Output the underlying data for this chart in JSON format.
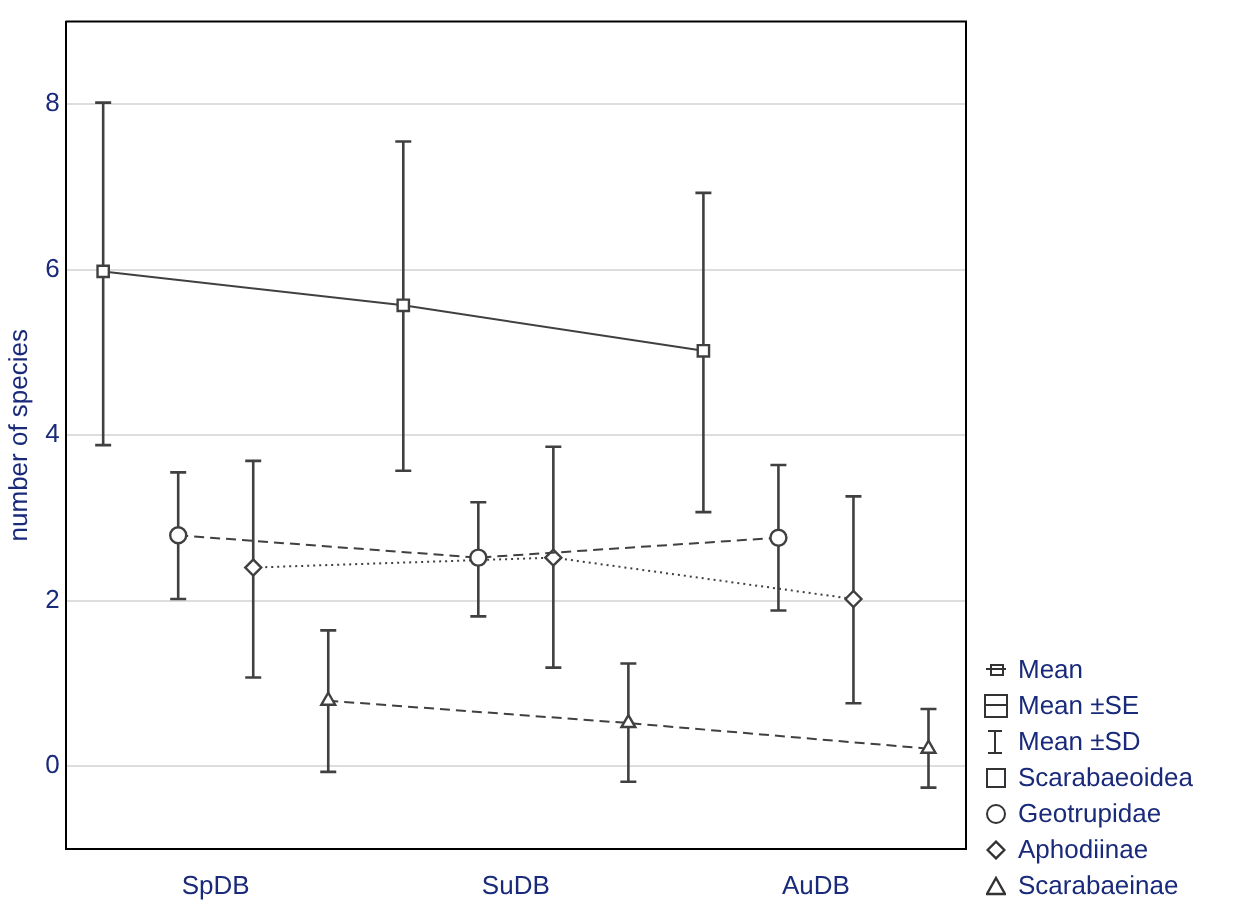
{
  "chart_data": {
    "type": "line",
    "ylabel": "number of species",
    "categories": [
      null,
      null,
      null,
      null,
      "SpDB",
      null,
      null,
      null,
      null,
      null,
      null,
      null,
      "SuDB",
      null,
      null,
      null,
      null,
      null,
      null,
      null,
      "AuDB",
      null,
      null,
      null,
      null
    ],
    "ylim": [
      -1,
      9
    ],
    "yticks": [
      0,
      2,
      4,
      6,
      8
    ],
    "grid": "y",
    "legend": "bottom right",
    "annotations": [
      "Mean",
      "Mean ±SE",
      "Mean ±SD"
    ],
    "series": [
      {
        "name": "Scarabaeoidea",
        "color": "#404040",
        "marker": "square",
        "line_style": "solid",
        "values": [
          null,
          5.98,
          null,
          null,
          null,
          null,
          null,
          null,
          null,
          5.57,
          null,
          null,
          null,
          null,
          null,
          null,
          null,
          5.02,
          null,
          null,
          null,
          null,
          null,
          null,
          null
        ],
        "errors": [
          null,
          [
            3.88,
            8.02
          ],
          null,
          null,
          null,
          null,
          null,
          null,
          null,
          [
            3.57,
            7.55
          ],
          null,
          null,
          null,
          null,
          null,
          null,
          null,
          [
            3.07,
            6.93
          ],
          null,
          null,
          null,
          null,
          null,
          null,
          null
        ]
      },
      {
        "name": "Geotrupidae",
        "color": "#404040",
        "marker": "circle",
        "line_style": "dashed",
        "values": [
          null,
          null,
          null,
          2.79,
          null,
          null,
          null,
          null,
          null,
          null,
          null,
          2.52,
          null,
          null,
          null,
          null,
          null,
          null,
          null,
          2.76,
          null,
          null,
          null,
          null,
          null
        ],
        "errors": [
          null,
          null,
          null,
          [
            2.02,
            3.55
          ],
          null,
          null,
          null,
          null,
          null,
          null,
          null,
          [
            1.81,
            3.19
          ],
          null,
          null,
          null,
          null,
          null,
          null,
          null,
          [
            1.88,
            3.64
          ],
          null,
          null,
          null,
          null,
          null
        ]
      },
      {
        "name": "Aphodiinae",
        "color": "#404040",
        "marker": "diamond",
        "line_style": "dotted",
        "values": [
          null,
          null,
          null,
          null,
          null,
          2.4,
          null,
          null,
          null,
          null,
          null,
          null,
          null,
          2.52,
          null,
          null,
          null,
          null,
          null,
          null,
          null,
          2.02,
          null,
          null,
          null
        ],
        "errors": [
          null,
          null,
          null,
          null,
          null,
          [
            1.07,
            3.69
          ],
          null,
          null,
          null,
          null,
          null,
          null,
          null,
          [
            1.19,
            3.86
          ],
          null,
          null,
          null,
          null,
          null,
          null,
          null,
          [
            0.76,
            3.26
          ],
          null,
          null,
          null
        ]
      },
      {
        "name": "Scarabaeinae",
        "color": "#404040",
        "marker": "triangle",
        "line_style": "dashed",
        "values": [
          null,
          null,
          null,
          null,
          null,
          null,
          null,
          0.79,
          null,
          null,
          null,
          null,
          null,
          null,
          null,
          0.52,
          null,
          null,
          null,
          null,
          null,
          null,
          null,
          0.21,
          null
        ],
        "errors": [
          null,
          null,
          null,
          null,
          null,
          null,
          null,
          [
            -0.07,
            1.64
          ],
          null,
          null,
          null,
          null,
          null,
          null,
          null,
          [
            -0.19,
            1.24
          ],
          null,
          null,
          null,
          null,
          null,
          null,
          null,
          [
            -0.26,
            0.69
          ],
          null
        ]
      }
    ]
  }
}
